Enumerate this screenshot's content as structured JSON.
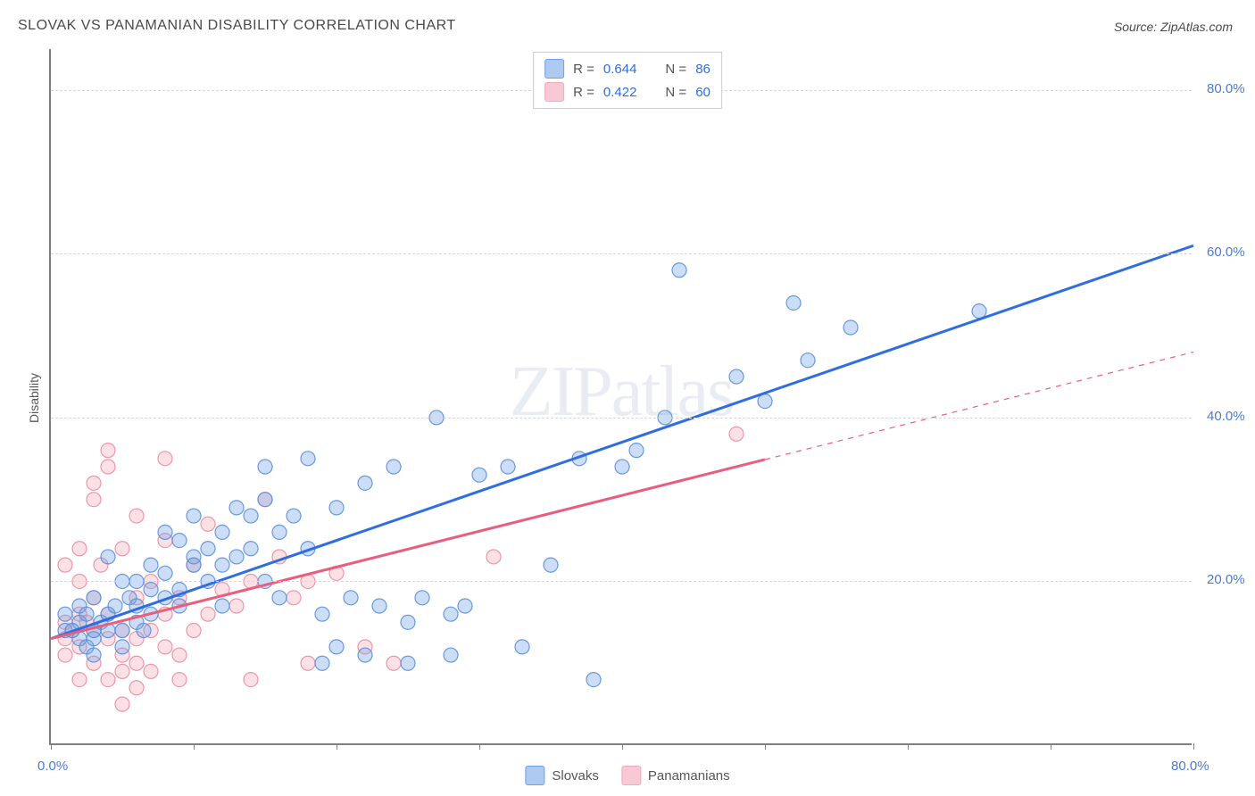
{
  "title": "SLOVAK VS PANAMANIAN DISABILITY CORRELATION CHART",
  "source_label": "Source: ZipAtlas.com",
  "watermark": "ZIPatlas",
  "ylabel": "Disability",
  "chart": {
    "type": "scatter",
    "xlim": [
      0,
      80
    ],
    "ylim": [
      0,
      85
    ],
    "xtick_positions": [
      0,
      10,
      20,
      30,
      40,
      50,
      60,
      70,
      80
    ],
    "ytick_positions": [
      20,
      40,
      60,
      80
    ],
    "xtick_labels": {
      "0": "0.0%",
      "80": "80.0%"
    },
    "ytick_labels": {
      "20": "20.0%",
      "40": "40.0%",
      "60": "60.0%",
      "80": "80.0%"
    },
    "grid_color": "#d8d8d8",
    "axis_color": "#808080",
    "tick_label_color": "#4a7bd6",
    "background_color": "#ffffff",
    "marker_radius": 8,
    "marker_fill_opacity": 0.35,
    "marker_stroke_opacity": 0.9,
    "marker_stroke_width": 1.2,
    "series": [
      {
        "name": "Slovaks",
        "color": "#6da0e8",
        "stroke": "#5b8fd8",
        "line_color": "#2f6de0",
        "line_width": 3,
        "R": "0.644",
        "N": "86",
        "trend": {
          "x1": 0,
          "y1": 13,
          "x2": 80,
          "y2": 61,
          "solid_until_x": 80
        },
        "points": [
          [
            1,
            14
          ],
          [
            1,
            16
          ],
          [
            1.5,
            14
          ],
          [
            2,
            15
          ],
          [
            2,
            17
          ],
          [
            2,
            13
          ],
          [
            2.5,
            12
          ],
          [
            2.5,
            16
          ],
          [
            3,
            14
          ],
          [
            3,
            18
          ],
          [
            3,
            13
          ],
          [
            3.5,
            15
          ],
          [
            4,
            14
          ],
          [
            4,
            16
          ],
          [
            4,
            23
          ],
          [
            4.5,
            17
          ],
          [
            5,
            14
          ],
          [
            5,
            20
          ],
          [
            5,
            12
          ],
          [
            5.5,
            18
          ],
          [
            6,
            20
          ],
          [
            6,
            15
          ],
          [
            6,
            17
          ],
          [
            7,
            16
          ],
          [
            7,
            22
          ],
          [
            7,
            19
          ],
          [
            8,
            18
          ],
          [
            8,
            21
          ],
          [
            8,
            26
          ],
          [
            9,
            25
          ],
          [
            9,
            19
          ],
          [
            9,
            17
          ],
          [
            10,
            22
          ],
          [
            10,
            28
          ],
          [
            10,
            23
          ],
          [
            11,
            20
          ],
          [
            11,
            24
          ],
          [
            12,
            26
          ],
          [
            12,
            22
          ],
          [
            12,
            17
          ],
          [
            13,
            23
          ],
          [
            13,
            29
          ],
          [
            14,
            28
          ],
          [
            14,
            24
          ],
          [
            15,
            30
          ],
          [
            15,
            20
          ],
          [
            15,
            34
          ],
          [
            16,
            26
          ],
          [
            16,
            18
          ],
          [
            17,
            28
          ],
          [
            18,
            24
          ],
          [
            18,
            35
          ],
          [
            19,
            10
          ],
          [
            19,
            16
          ],
          [
            20,
            29
          ],
          [
            20,
            12
          ],
          [
            21,
            18
          ],
          [
            22,
            32
          ],
          [
            22,
            11
          ],
          [
            23,
            17
          ],
          [
            24,
            34
          ],
          [
            25,
            10
          ],
          [
            25,
            15
          ],
          [
            26,
            18
          ],
          [
            27,
            40
          ],
          [
            28,
            16
          ],
          [
            28,
            11
          ],
          [
            29,
            17
          ],
          [
            30,
            33
          ],
          [
            32,
            34
          ],
          [
            33,
            12
          ],
          [
            35,
            22
          ],
          [
            37,
            35
          ],
          [
            38,
            8
          ],
          [
            40,
            34
          ],
          [
            43,
            40
          ],
          [
            50,
            42
          ],
          [
            52,
            54
          ],
          [
            53,
            47
          ],
          [
            56,
            51
          ],
          [
            65,
            53
          ],
          [
            41,
            36
          ],
          [
            44,
            58
          ],
          [
            48,
            45
          ],
          [
            6.5,
            14
          ],
          [
            3,
            11
          ]
        ]
      },
      {
        "name": "Panamanians",
        "color": "#f4a8b8",
        "stroke": "#ea8da0",
        "line_color": "#e85f7d",
        "line_width": 3,
        "R": "0.422",
        "N": "60",
        "trend": {
          "x1": 0,
          "y1": 13,
          "x2": 80,
          "y2": 48,
          "solid_until_x": 50
        },
        "points": [
          [
            1,
            13
          ],
          [
            1,
            15
          ],
          [
            1,
            22
          ],
          [
            1,
            11
          ],
          [
            1.5,
            14
          ],
          [
            2,
            20
          ],
          [
            2,
            12
          ],
          [
            2,
            16
          ],
          [
            2,
            24
          ],
          [
            2,
            8
          ],
          [
            2.5,
            15
          ],
          [
            3,
            14
          ],
          [
            3,
            18
          ],
          [
            3,
            30
          ],
          [
            3,
            32
          ],
          [
            3,
            10
          ],
          [
            3.5,
            22
          ],
          [
            4,
            16
          ],
          [
            4,
            8
          ],
          [
            4,
            13
          ],
          [
            4,
            36
          ],
          [
            4,
            34
          ],
          [
            5,
            14
          ],
          [
            5,
            11
          ],
          [
            5,
            9
          ],
          [
            5,
            24
          ],
          [
            5,
            5
          ],
          [
            6,
            13
          ],
          [
            6,
            18
          ],
          [
            6,
            10
          ],
          [
            6,
            7
          ],
          [
            7,
            14
          ],
          [
            7,
            20
          ],
          [
            7,
            9
          ],
          [
            8,
            16
          ],
          [
            8,
            12
          ],
          [
            8,
            25
          ],
          [
            8,
            35
          ],
          [
            9,
            18
          ],
          [
            9,
            11
          ],
          [
            9,
            8
          ],
          [
            10,
            14
          ],
          [
            10,
            22
          ],
          [
            11,
            16
          ],
          [
            11,
            27
          ],
          [
            12,
            19
          ],
          [
            13,
            17
          ],
          [
            14,
            20
          ],
          [
            14,
            8
          ],
          [
            15,
            30
          ],
          [
            16,
            23
          ],
          [
            17,
            18
          ],
          [
            18,
            20
          ],
          [
            18,
            10
          ],
          [
            20,
            21
          ],
          [
            22,
            12
          ],
          [
            24,
            10
          ],
          [
            31,
            23
          ],
          [
            48,
            38
          ],
          [
            6,
            28
          ]
        ]
      }
    ]
  },
  "legend_bottom": [
    {
      "label": "Slovaks",
      "fill": "#aecaf2",
      "stroke": "#6da0e8"
    },
    {
      "label": "Panamanians",
      "fill": "#f8c8d4",
      "stroke": "#f4a8b8"
    }
  ],
  "legend_top": [
    {
      "fill": "#aecaf2",
      "stroke": "#6da0e8",
      "R": "0.644",
      "N": "86",
      "value_color": "#2f6de0"
    },
    {
      "fill": "#f8c8d4",
      "stroke": "#f4a8b8",
      "R": "0.422",
      "N": "60",
      "value_color": "#2f6de0"
    }
  ]
}
